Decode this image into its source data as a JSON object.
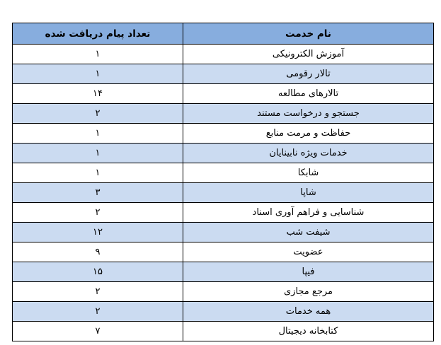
{
  "table": {
    "direction": "rtl",
    "colors": {
      "header_bg": "#87ADDE",
      "band_bg": "#CBDBF1",
      "border": "#000000",
      "text": "#000000"
    },
    "headers": {
      "service": "نام خدمت",
      "count": "تعداد پیام دریافت شده"
    },
    "rows": [
      {
        "service": "آموزش الکترونیکی",
        "count": "۱"
      },
      {
        "service": "تالار رقومی",
        "count": "۱"
      },
      {
        "service": "تالارهای مطالعه",
        "count": "۱۴"
      },
      {
        "service": "جستجو و درخواست مستند",
        "count": "۲"
      },
      {
        "service": "حفاظت و مرمت منابع",
        "count": "۱"
      },
      {
        "service": "خدمات ویژه نابینایان",
        "count": "۱"
      },
      {
        "service": "شابکا",
        "count": "۱"
      },
      {
        "service": "شاپا",
        "count": "۳"
      },
      {
        "service": "شناسایی و فراهم آوری اسناد",
        "count": "۲"
      },
      {
        "service": "شیفت شب",
        "count": "۱۲"
      },
      {
        "service": "عضویت",
        "count": "۹"
      },
      {
        "service": "فیپا",
        "count": "۱۵"
      },
      {
        "service": "مرجع مجازی",
        "count": "۲"
      },
      {
        "service": "همه خدمات",
        "count": "۲"
      },
      {
        "service": "کتابخانه دیجیتال",
        "count": "۷"
      }
    ]
  }
}
